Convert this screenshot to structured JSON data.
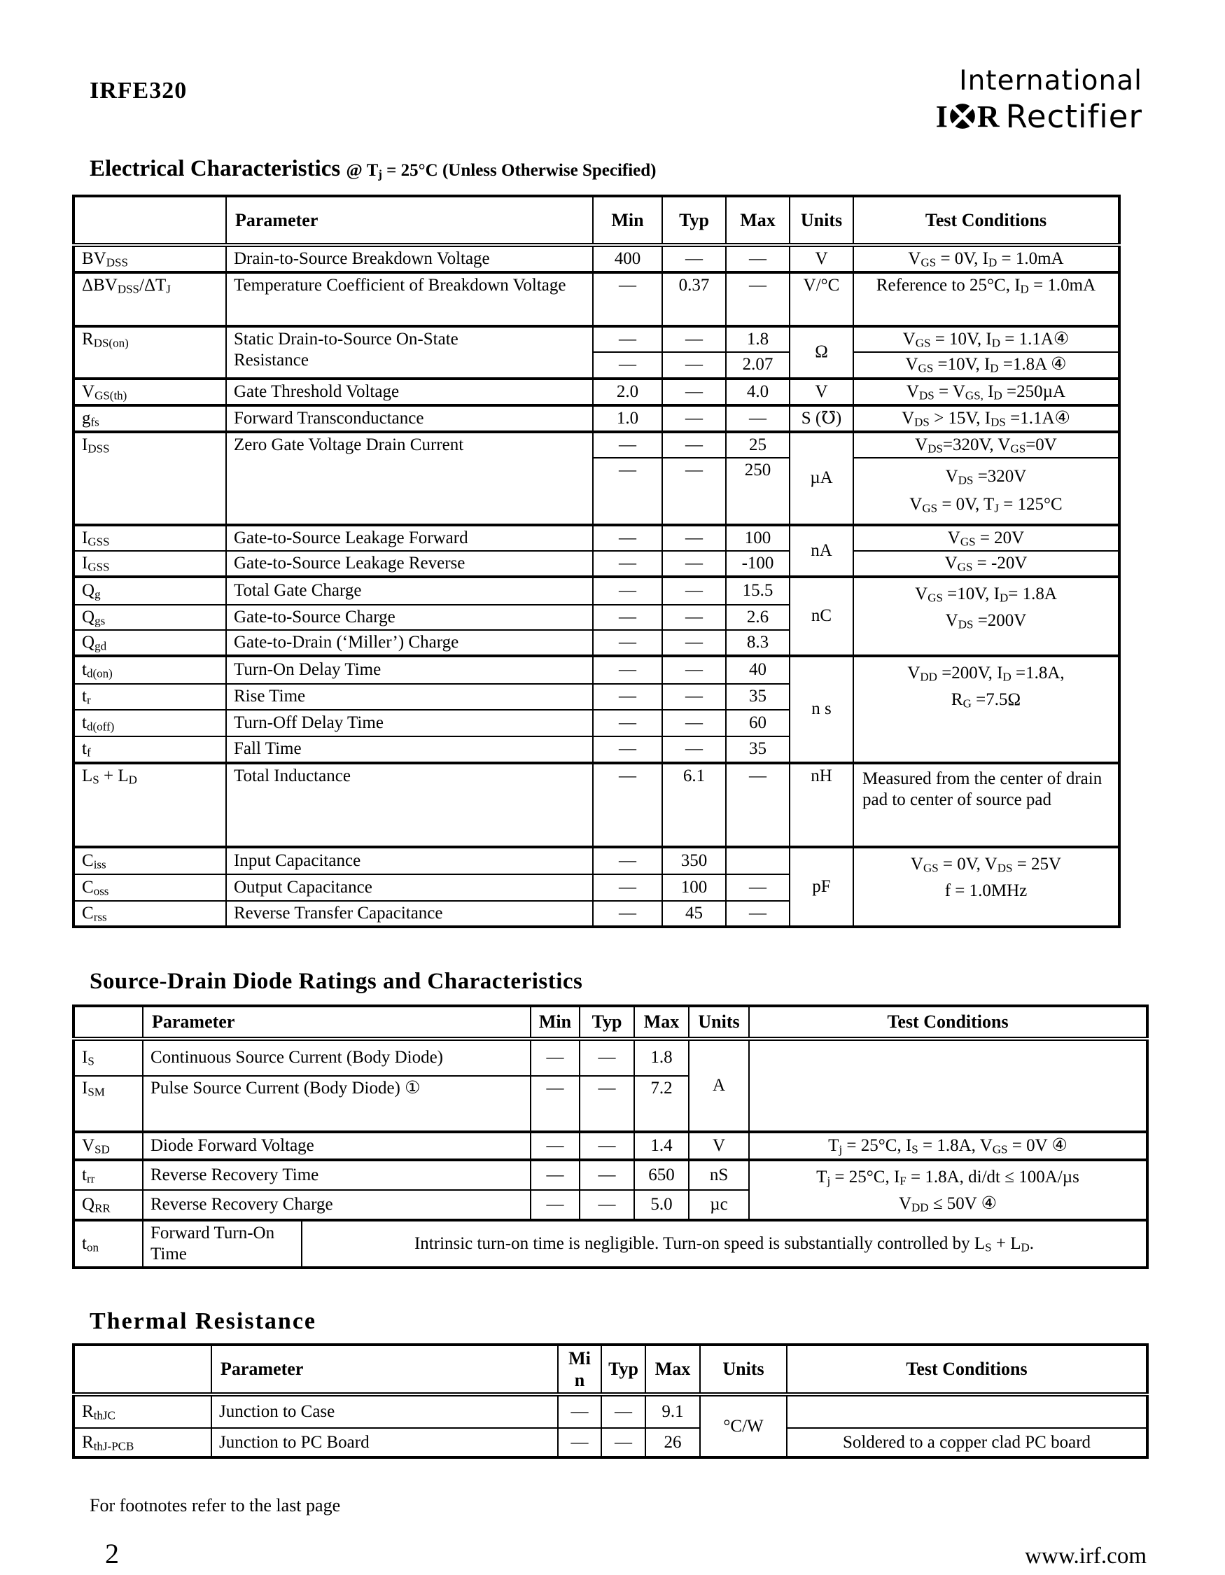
{
  "header": {
    "part_number": "IRFE320",
    "logo": {
      "line1": "International",
      "letter_i": "I",
      "letter_r": "R",
      "word": "Rectifier"
    }
  },
  "electrical": {
    "title": "Electrical Characteristics",
    "subtitle": "@ T~j~ = 25°C (Unless Otherwise Specified)",
    "headers": {
      "parameter": "Parameter",
      "min": "Min",
      "typ": "Typ",
      "max": "Max",
      "units": "Units",
      "tc": "Test Conditions"
    },
    "bvdss": {
      "sym": "BV~DSS~",
      "param": "Drain-to-Source Breakdown Voltage",
      "min": "400",
      "typ": "—",
      "max": "—",
      "units": "V",
      "tc": "V~GS~ = 0V, I~D~ = 1.0mA"
    },
    "dbv": {
      "sym": "ΔBV~DSS~/ΔT~J~",
      "param": "Temperature Coefficient of Breakdown Voltage",
      "min": "—",
      "typ": "0.37",
      "max": "—",
      "units": "V/°C",
      "tc": "Reference to 25°C, I~D~ = 1.0mA"
    },
    "rdson": {
      "sym": "R~DS(on)~",
      "param1": "Static Drain-to-Source On-State",
      "param2": "Resistance",
      "units": "Ω",
      "r1": {
        "min": "—",
        "typ": "—",
        "max": "1.8",
        "tc": "V~GS~ = 10V, I~D~ = 1.1A④"
      },
      "r2": {
        "min": "—",
        "typ": "—",
        "max": "2.07",
        "tc": "V~GS~ =10V, I~D~ =1.8A ④"
      }
    },
    "vgsth": {
      "sym": "V~GS(th)~",
      "param": "Gate Threshold Voltage",
      "min": "2.0",
      "typ": "—",
      "max": "4.0",
      "units": "V",
      "tc": "V~DS~ = V~GS,~ I~D~ =250µA"
    },
    "gfs": {
      "sym": "g~fs~",
      "param": "Forward Transconductance",
      "min": "1.0",
      "typ": "—",
      "max": "—",
      "units": "S (℧)",
      "tc": "V~DS~ > 15V, I~DS~ =1.1A④"
    },
    "idss": {
      "sym": "I~DSS~",
      "param": "Zero Gate Voltage Drain Current",
      "units": "µA",
      "r1": {
        "min": "—",
        "typ": "—",
        "max": "25",
        "tc": "V~DS~=320V, V~GS~=0V"
      },
      "r2": {
        "min": "—",
        "typ": "—",
        "max": "250",
        "tc1": "V~DS~ =320V",
        "tc2": "V~GS~ = 0V, T~J~ = 125°C"
      }
    },
    "igss": {
      "units": "nA",
      "f": {
        "sym": "I~GSS~",
        "param": "Gate-to-Source Leakage Forward",
        "min": "—",
        "typ": "—",
        "max": "100",
        "tc": "V~GS~ = 20V"
      },
      "r": {
        "sym": "I~GSS~",
        "param": "Gate-to-Source Leakage Reverse",
        "min": "—",
        "typ": "—",
        "max": "-100",
        "tc": "V~GS~ = -20V"
      }
    },
    "charge": {
      "units": "nC",
      "tc1": "V~GS~ =10V, I~D~= 1.8A",
      "tc2": "V~DS~ =200V",
      "qg": {
        "sym": "Q~g~",
        "param": "Total Gate Charge",
        "min": "—",
        "typ": "—",
        "max": "15.5"
      },
      "qgs": {
        "sym": "Q~gs~",
        "param": "Gate-to-Source Charge",
        "min": "—",
        "typ": "—",
        "max": "2.6"
      },
      "qgd": {
        "sym": "Q~gd~",
        "param": "Gate-to-Drain (‘Miller’) Charge",
        "min": "—",
        "typ": "—",
        "max": "8.3"
      }
    },
    "sw": {
      "units": "n s",
      "tc1": "V~DD~ =200V, I~D~ =1.8A,",
      "tc2": "R~G~ =7.5Ω",
      "tdon": {
        "sym": "t~d(on)~",
        "param": "Turn-On Delay Time",
        "min": "—",
        "typ": "—",
        "max": "40"
      },
      "tr": {
        "sym": "t~r~",
        "param": "Rise Time",
        "min": "—",
        "typ": "—",
        "max": "35"
      },
      "tdoff": {
        "sym": "t~d(off)~",
        "param": "Turn-Off Delay Time",
        "min": "—",
        "typ": "—",
        "max": "60"
      },
      "tf": {
        "sym": "t~f~",
        "param": "Fall Time",
        "min": "—",
        "typ": "—",
        "max": "35"
      }
    },
    "ls": {
      "sym": "L~S~ + L~D~",
      "param": "Total Inductance",
      "min": "—",
      "typ": "6.1",
      "max": "—",
      "units": "nH",
      "tc": "Measured from the center of drain pad to center of source pad"
    },
    "cap": {
      "units": "pF",
      "tc1": "V~GS~ = 0V, V~DS~ = 25V",
      "tc2": "f = 1.0MHz",
      "ciss": {
        "sym": "C~iss~",
        "param": "Input Capacitance",
        "min": "—",
        "typ": "350",
        "max": ""
      },
      "coss": {
        "sym": "C~oss~",
        "param": "Output Capacitance",
        "min": "—",
        "typ": "100",
        "max": "—"
      },
      "crss": {
        "sym": "C~rss~",
        "param": "Reverse Transfer Capacitance",
        "min": "—",
        "typ": "45",
        "max": "—"
      }
    }
  },
  "diode": {
    "title": "Source-Drain Diode Ratings and Characteristics",
    "headers": {
      "parameter": "Parameter",
      "min": "Min",
      "typ": "Typ",
      "max": "Max",
      "units": "Units",
      "tc": "Test Conditions"
    },
    "is": {
      "sym": "I~S~",
      "param": "Continuous Source Current (Body Diode)",
      "min": "—",
      "typ": "—",
      "max": "1.8",
      "units": "A",
      "tc": ""
    },
    "ism": {
      "sym": "I~SM~",
      "param": "Pulse Source Current (Body Diode) ①",
      "min": "—",
      "typ": "—",
      "max": "7.2"
    },
    "vsd": {
      "sym": "V~SD~",
      "param": "Diode Forward Voltage",
      "min": "—",
      "typ": "—",
      "max": "1.4",
      "units": "V",
      "tc": "T~j~ = 25°C, I~S~ = 1.8A, V~GS~ = 0V ④"
    },
    "trr": {
      "sym": "t~rr~",
      "param": "Reverse Recovery Time",
      "min": "—",
      "typ": "—",
      "max": "650",
      "units": "nS",
      "tc1": "T~j~ = 25°C, I~F~ = 1.8A, di/dt ≤ 100A/µs",
      "tc2": "V~DD~ ≤ 50V ④"
    },
    "qrr": {
      "sym": "Q~RR~",
      "param": "Reverse Recovery Charge",
      "min": "—",
      "typ": "—",
      "max": "5.0",
      "units": "µc"
    },
    "ton": {
      "sym": "t~on~",
      "param": "Forward Turn-On Time",
      "note": "Intrinsic turn-on time is negligible. Turn-on speed is substantially controlled by L~S~ + L~D~."
    }
  },
  "thermal": {
    "title": "Thermal Resistance",
    "headers": {
      "parameter": "Parameter",
      "min": "Min",
      "typ": "Typ",
      "max": "Max",
      "units": "Units",
      "tc": "Test Conditions"
    },
    "units": "°C/W",
    "jc": {
      "sym": "R~thJC~",
      "param": "Junction to Case",
      "min": "—",
      "typ": "—",
      "max": "9.1",
      "tc": ""
    },
    "pcb": {
      "sym": "R~thJ-PCB~",
      "param": "Junction to PC Board",
      "min": "—",
      "typ": "—",
      "max": "26",
      "tc": "Soldered to a copper clad PC board"
    }
  },
  "footer": {
    "footnote": "For footnotes refer to the last page",
    "page_number": "2",
    "website": "www.irf.com"
  }
}
